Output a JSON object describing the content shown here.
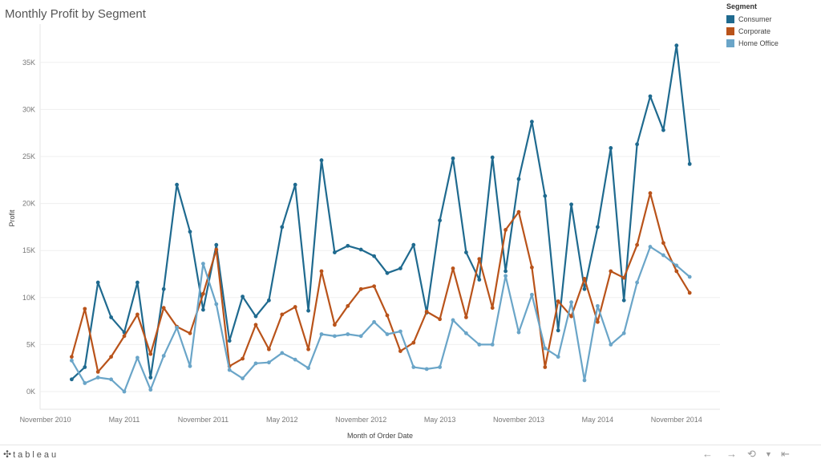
{
  "title": "Monthly Profit by Segment",
  "legend": {
    "title": "Segment",
    "items": [
      {
        "label": "Consumer",
        "color": "#1f6a8f"
      },
      {
        "label": "Corporate",
        "color": "#b9531a"
      },
      {
        "label": "Home Office",
        "color": "#6aa5c8"
      }
    ]
  },
  "footer": {
    "brand": "tableau",
    "icons": [
      "undo-icon",
      "redo-icon",
      "revert-icon",
      "dropdown-icon",
      "reset-icon"
    ]
  },
  "chart_data": {
    "type": "line",
    "title": "Monthly Profit by Segment",
    "xlabel": "Month of Order Date",
    "ylabel": "Profit",
    "ylim": [
      0,
      37000
    ],
    "yticks": [
      "0K",
      "5K",
      "10K",
      "15K",
      "20K",
      "25K",
      "30K",
      "35K"
    ],
    "xticks": [
      "November 2010",
      "May 2011",
      "November 2011",
      "May 2012",
      "November 2012",
      "May 2013",
      "November 2013",
      "May 2014",
      "November 2014"
    ],
    "x": [
      "Dec 2010",
      "Jan 2011",
      "Feb 2011",
      "Mar 2011",
      "Apr 2011",
      "May 2011",
      "Jun 2011",
      "Jul 2011",
      "Aug 2011",
      "Sep 2011",
      "Oct 2011",
      "Nov 2011",
      "Dec 2011",
      "Jan 2012",
      "Feb 2012",
      "Mar 2012",
      "Apr 2012",
      "May 2012",
      "Jun 2012",
      "Jul 2012",
      "Aug 2012",
      "Sep 2012",
      "Oct 2012",
      "Nov 2012",
      "Dec 2012",
      "Jan 2013",
      "Feb 2013",
      "Mar 2013",
      "Apr 2013",
      "May 2013",
      "Jun 2013",
      "Jul 2013",
      "Aug 2013",
      "Sep 2013",
      "Oct 2013",
      "Nov 2013",
      "Dec 2013",
      "Jan 2014",
      "Feb 2014",
      "Mar 2014",
      "Apr 2014",
      "May 2014",
      "Jun 2014",
      "Jul 2014",
      "Aug 2014",
      "Sep 2014",
      "Oct 2014",
      "Nov 2014",
      "Dec 2014"
    ],
    "series": [
      {
        "name": "Consumer",
        "color": "#1f6a8f",
        "values": [
          null,
          1300,
          2600,
          11600,
          7900,
          6300,
          11600,
          1500,
          10900,
          22000,
          17000,
          8700,
          15600,
          5400,
          10100,
          8000,
          9700,
          17500,
          22000,
          8600,
          24600,
          14800,
          15500,
          15100,
          14400,
          12600,
          13100,
          15600,
          8400,
          18200,
          24800,
          14800,
          11900,
          24900,
          12800,
          22600,
          28700,
          20800,
          6500,
          19900,
          10900,
          17500,
          25900,
          9700,
          26300,
          31400,
          27800,
          36800,
          24200
        ]
      },
      {
        "name": "Corporate",
        "color": "#b9531a",
        "values": [
          null,
          3700,
          8800,
          2100,
          3700,
          5900,
          8200,
          4000,
          8900,
          6900,
          6200,
          10400,
          15100,
          2700,
          3500,
          7100,
          4500,
          8200,
          9000,
          4500,
          12800,
          7100,
          9100,
          10900,
          11200,
          8100,
          4300,
          5200,
          8500,
          7700,
          13100,
          7900,
          14100,
          8900,
          17200,
          19100,
          13200,
          2600,
          9600,
          8000,
          12000,
          7400,
          12800,
          12100,
          15600,
          21100,
          15800,
          12800,
          10500
        ]
      },
      {
        "name": "Home Office",
        "color": "#6aa5c8",
        "values": [
          null,
          3300,
          900,
          1500,
          1300,
          0,
          3600,
          200,
          3800,
          6800,
          2700,
          13600,
          9300,
          2300,
          1400,
          3000,
          3100,
          4100,
          3400,
          2500,
          6100,
          5900,
          6100,
          5900,
          7400,
          6100,
          6400,
          2600,
          2400,
          2600,
          7600,
          6200,
          5000,
          5000,
          12300,
          6300,
          10300,
          4600,
          3700,
          9500,
          1200,
          9100,
          5000,
          6200,
          11600,
          15400,
          14500,
          13400,
          12200
        ]
      }
    ]
  }
}
